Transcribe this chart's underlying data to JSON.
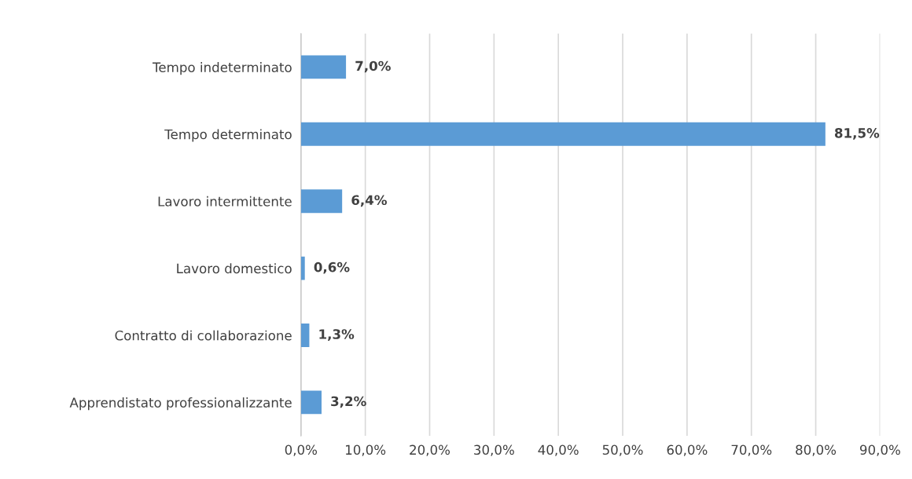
{
  "chart_data": {
    "type": "bar",
    "orientation": "horizontal",
    "categories": [
      "Tempo indeterminato",
      "Tempo determinato",
      "Lavoro intermittente",
      "Lavoro domestico",
      "Contratto di collaborazione",
      "Apprendistato professionalizzante"
    ],
    "values": [
      7.0,
      81.5,
      6.4,
      0.6,
      1.3,
      3.2
    ],
    "value_labels": [
      "7,0%",
      "81,5%",
      "6,4%",
      "0,6%",
      "1,3%",
      "3,2%"
    ],
    "color": "#5b9bd5",
    "xlim": [
      0,
      90
    ],
    "xticks": [
      {
        "value": 0,
        "label": "0,0%"
      },
      {
        "value": 10,
        "label": "10,0%"
      },
      {
        "value": 20,
        "label": "20,0%"
      },
      {
        "value": 30,
        "label": "30,0%"
      },
      {
        "value": 40,
        "label": "40,0%"
      },
      {
        "value": 50,
        "label": "50,0%"
      },
      {
        "value": 60,
        "label": "60,0%"
      },
      {
        "value": 70,
        "label": "70,0%"
      },
      {
        "value": 80,
        "label": "80,0%"
      },
      {
        "value": 90,
        "label": "90,0%"
      }
    ],
    "grid": "x",
    "legend": false
  }
}
